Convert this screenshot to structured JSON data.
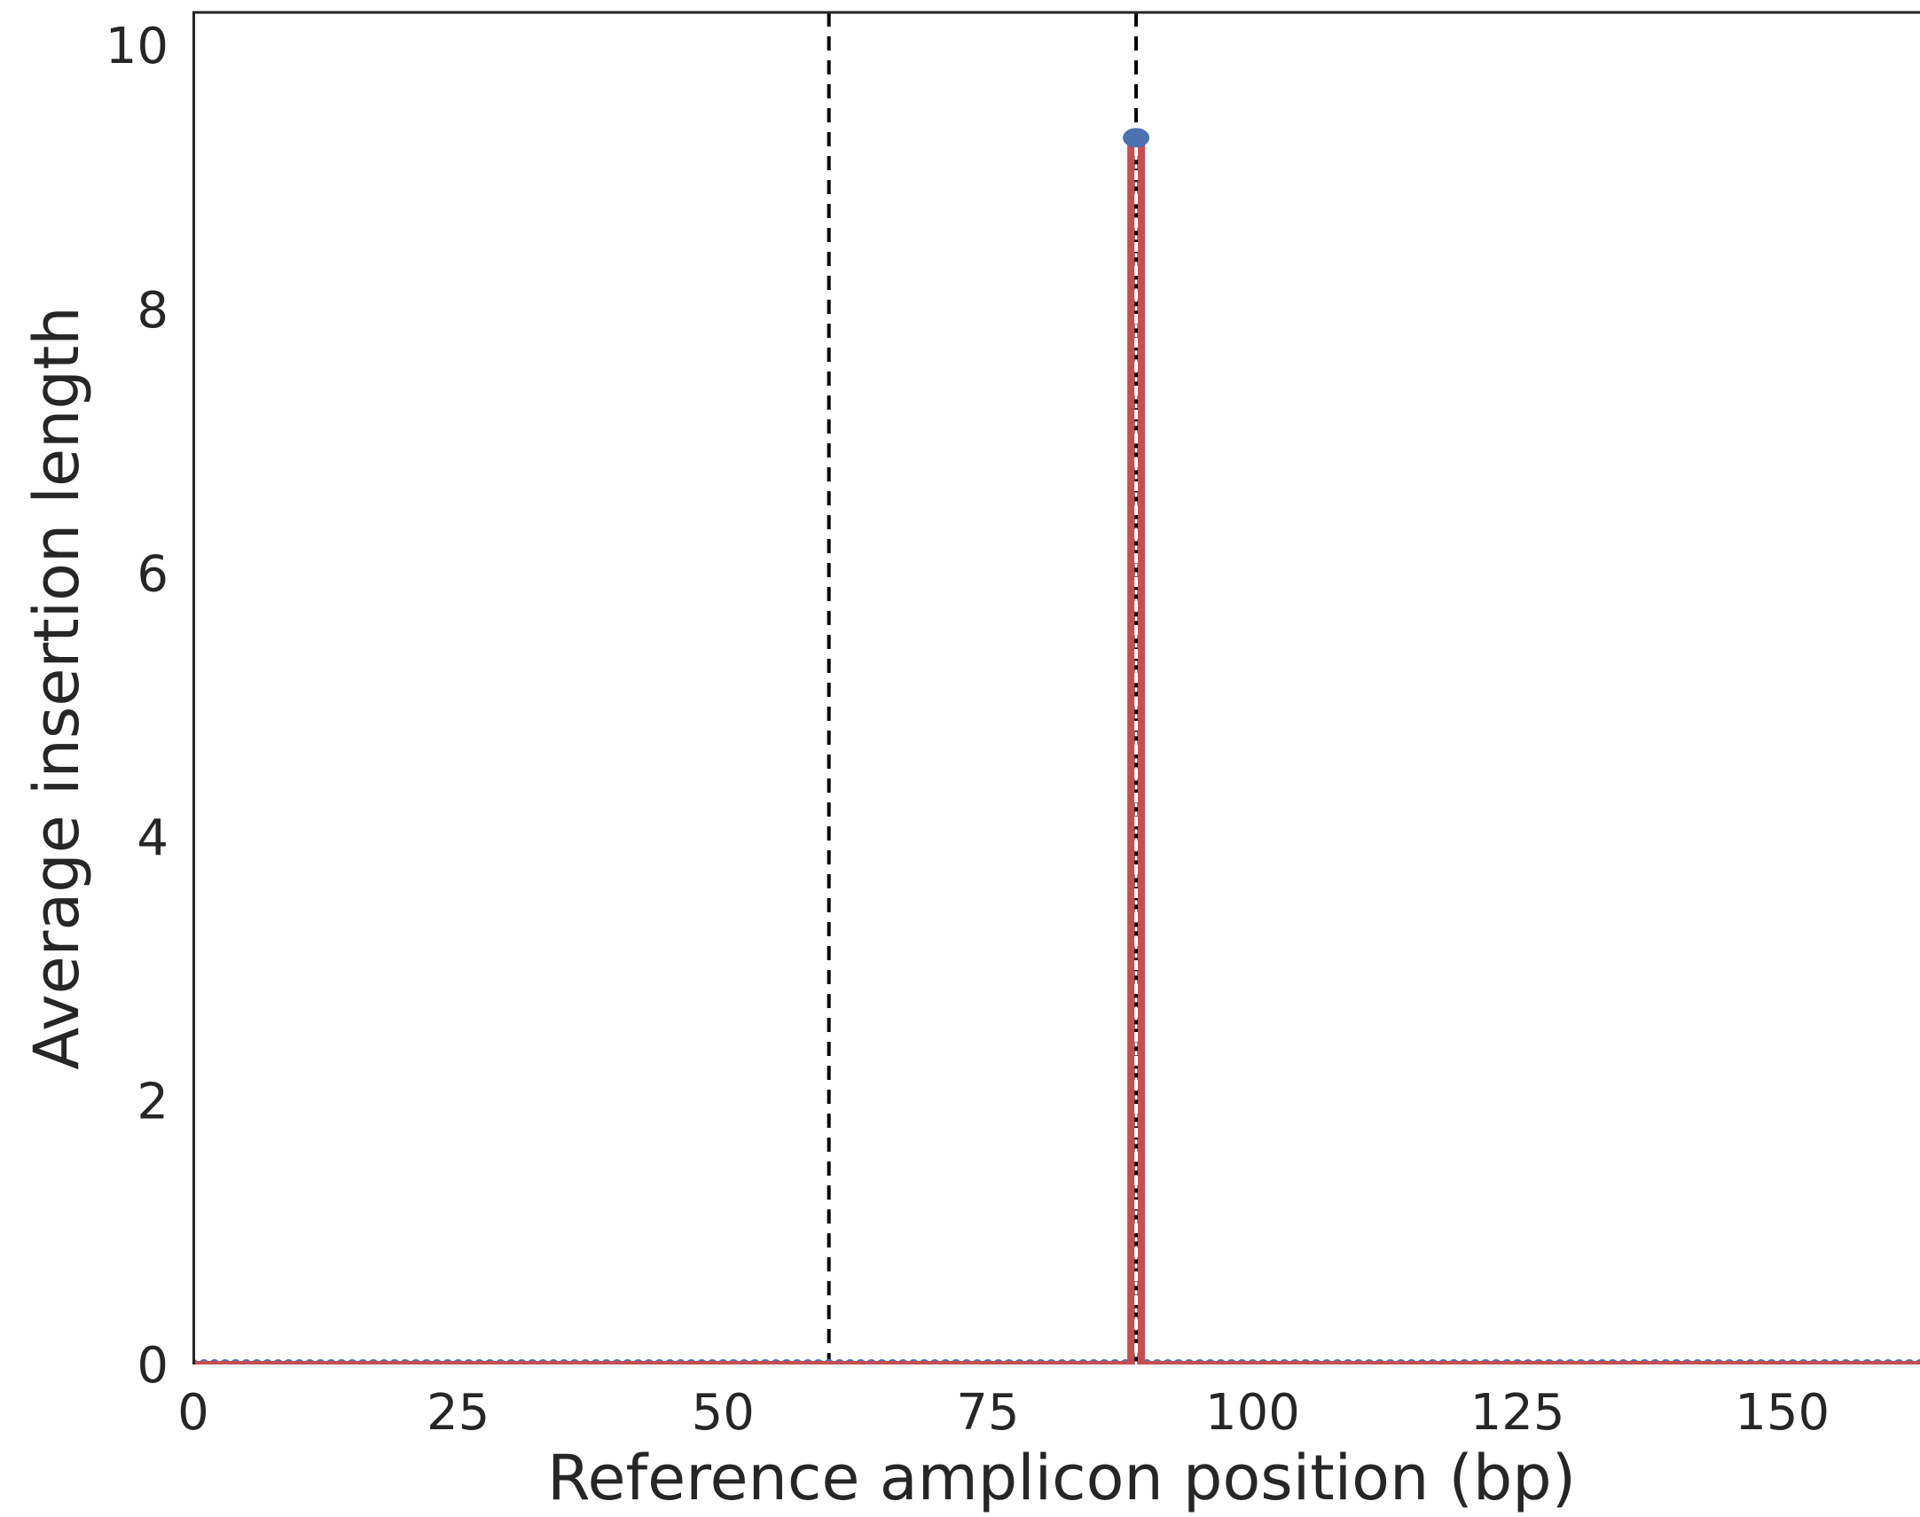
{
  "chart_data": {
    "type": "line",
    "title": "",
    "xlabel": "Reference amplicon position (bp)",
    "ylabel": "Average insertion length",
    "xlim": [
      0,
      163
    ],
    "ylim": [
      0,
      10.25
    ],
    "x_ticks": [
      0,
      25,
      50,
      75,
      100,
      125,
      150
    ],
    "x_tick_labels": [
      "0",
      "25",
      "50",
      "75",
      "100",
      "125",
      "150"
    ],
    "y_ticks": [
      0,
      2,
      4,
      6,
      8,
      10
    ],
    "y_tick_labels": [
      "0",
      "2",
      "4",
      "6",
      "8",
      "10"
    ],
    "grid": false,
    "series": [
      {
        "color": "#c44e52",
        "marker_color": "#4c72b0",
        "baseline_value": 0,
        "spike_x": 89,
        "spike_value": 9.3
      }
    ],
    "reference_lines": [
      {
        "x": 89,
        "style": "dashed",
        "color": "#000000"
      },
      {
        "x": 60,
        "style": "dashed",
        "color": "#000000"
      }
    ],
    "colors": {
      "axis": "#262626",
      "text": "#262626"
    }
  }
}
